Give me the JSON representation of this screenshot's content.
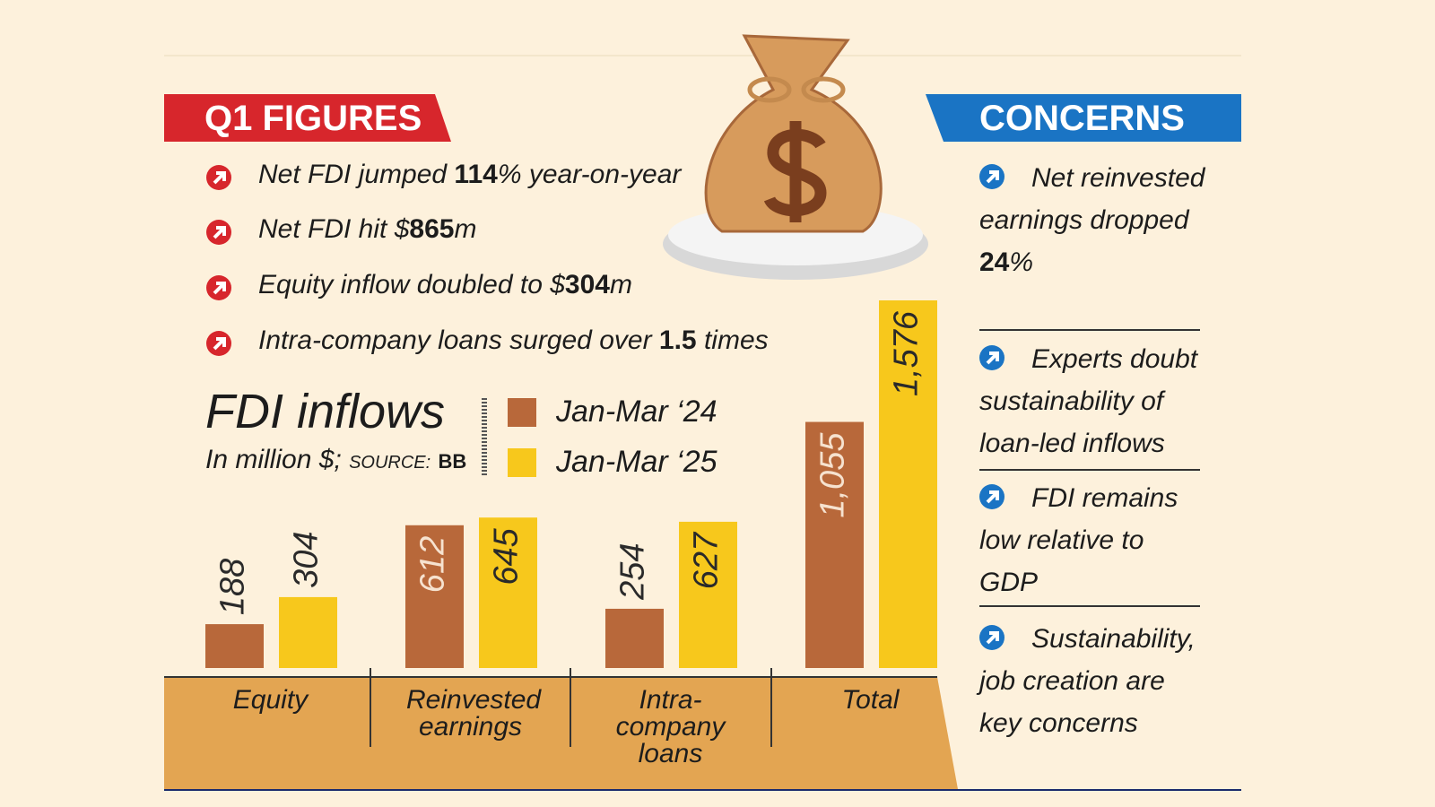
{
  "q1_figures": {
    "title": "Q1 FIGURES",
    "items": [
      {
        "parts": [
          "Net FDI jumped ",
          "114",
          "% year-on-year"
        ]
      },
      {
        "parts": [
          "Net FDI hit $",
          "865",
          "m"
        ]
      },
      {
        "parts": [
          "Equity inflow doubled to $",
          "304",
          "m"
        ]
      },
      {
        "parts": [
          "Intra-company loans surged over ",
          "1.5",
          " times"
        ]
      }
    ]
  },
  "concerns": {
    "title": "CONCERNS",
    "items": [
      {
        "parts": [
          "Net reinvested earnings dropped ",
          "24",
          "%"
        ]
      },
      {
        "parts": [
          "Experts doubt sustainability of loan-led inflows"
        ]
      },
      {
        "parts": [
          "FDI remains low relative to GDP"
        ]
      },
      {
        "parts": [
          "Sustainability, job creation are key concerns"
        ]
      }
    ]
  },
  "chart_data": {
    "type": "bar",
    "title": "FDI inflows",
    "subtitle": "In million $;",
    "source_label": "SOURCE:",
    "source": "BB",
    "categories": [
      "Equity",
      "Reinvested earnings",
      "Intra-company loans",
      "Total"
    ],
    "series": [
      {
        "name": "Jan-Mar ‘24",
        "color": "#b8683a",
        "values": [
          188,
          612,
          254,
          1055
        ],
        "value_labels": [
          "188",
          "612",
          "254",
          "1,055"
        ]
      },
      {
        "name": "Jan-Mar ‘25",
        "color": "#f7c81c",
        "values": [
          304,
          645,
          627,
          1576
        ],
        "value_labels": [
          "304",
          "645",
          "627",
          "1,576"
        ]
      }
    ]
  }
}
